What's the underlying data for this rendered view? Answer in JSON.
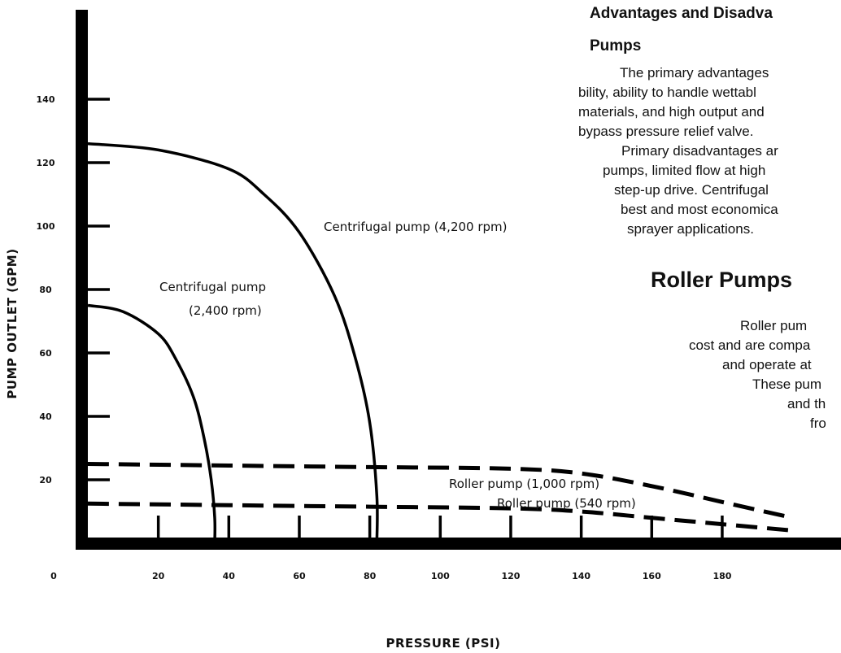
{
  "chart_data": {
    "type": "line",
    "xlabel": "PRESSURE (PSI)",
    "ylabel": "PUMP OUTLET (GPM)",
    "xlim": [
      0,
      200
    ],
    "ylim": [
      0,
      145
    ],
    "x_ticks": [
      0,
      20,
      40,
      60,
      80,
      100,
      120,
      140,
      160,
      180
    ],
    "x_tick_labels": [
      "0",
      "20",
      "40",
      "60",
      "80",
      "100",
      "120",
      "140",
      "160",
      "180"
    ],
    "y_ticks": [
      20,
      40,
      60,
      80,
      100,
      120,
      140
    ],
    "y_tick_labels": [
      "20",
      "40",
      "60",
      "80",
      "100",
      "120",
      "140"
    ],
    "grid": false,
    "series": [
      {
        "name": "Centrifugal pump (4,200 rpm)",
        "style": "solid",
        "x": [
          0,
          20,
          40,
          50,
          60,
          70,
          76,
          80,
          82,
          82
        ],
        "y": [
          126,
          124,
          118,
          110,
          98,
          78,
          58,
          38,
          15,
          0
        ]
      },
      {
        "name": "Centrifugal pump (2,400 rpm)",
        "style": "solid",
        "x": [
          0,
          10,
          20,
          25,
          30,
          33,
          35,
          36,
          36
        ],
        "y": [
          75,
          73,
          66,
          58,
          46,
          33,
          20,
          8,
          0
        ]
      },
      {
        "name": "Roller pump (1,000 rpm)",
        "style": "dashed",
        "x": [
          0,
          40,
          80,
          120,
          140,
          160,
          180,
          200
        ],
        "y": [
          25,
          24.5,
          24,
          23.5,
          22,
          18,
          13,
          8
        ]
      },
      {
        "name": "Roller pump (540 rpm)",
        "style": "dashed",
        "x": [
          0,
          40,
          80,
          120,
          140,
          160,
          180,
          200
        ],
        "y": [
          12.5,
          12,
          11.5,
          11,
          10,
          8,
          6,
          4
        ]
      }
    ]
  },
  "text": {
    "section1_title": "Advantages and Disadva",
    "section1_title_line2": "Pumps",
    "para1": [
      "The primary advantages",
      "bility, ability to handle wettabl",
      "materials, and high output and",
      "bypass pressure relief valve."
    ],
    "para2": [
      "Primary disadvantages ar",
      "pumps, limited flow at high",
      "step-up drive. Centrifugal",
      "best and most economica",
      "sprayer applications."
    ],
    "section2_title": "Roller Pumps",
    "para3": [
      "Roller pum",
      "cost and are compa",
      "and operate at",
      "These pum",
      "and th",
      "fro"
    ]
  }
}
